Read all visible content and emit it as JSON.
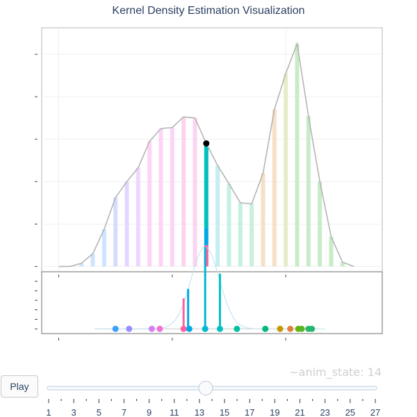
{
  "title": "Kernel Density Estimation Visualization",
  "controls": {
    "play_label": "Play",
    "state_prefix": "~anim_state:",
    "state_value": 14,
    "slider_ticks": [
      "1",
      "3",
      "5",
      "7",
      "9",
      "11",
      "13",
      "15",
      "17",
      "19",
      "21",
      "23",
      "25",
      "27"
    ]
  },
  "colors": {
    "pink": "#ff5fa2",
    "blue": "#00a8e8",
    "teal": "#00c0c0",
    "envelope": "#b4b4b4",
    "gauss": "#bcdff0"
  },
  "chart_data": {
    "type": "bar",
    "x_ticks_main": [
      "1",
      "21"
    ],
    "x_ticks_lower": [
      "1",
      "11",
      "21"
    ],
    "bottom_ticks": [
      "1",
      "11",
      "21"
    ],
    "xlim": [
      -0.5,
      29.5
    ],
    "upper_ylim": [
      -0.5,
      22.5
    ],
    "lower_ylim": [
      -0.5,
      6
    ],
    "envelope": {
      "x": [
        1,
        2,
        3,
        4,
        5,
        6,
        7,
        8,
        9,
        10,
        11,
        12,
        13,
        14,
        15,
        16,
        17,
        18,
        19,
        20,
        21,
        22,
        23,
        24,
        25,
        26,
        27
      ],
      "y": [
        0,
        0,
        0.3,
        1.2,
        3.5,
        6.5,
        8,
        9.3,
        11.8,
        13,
        13.1,
        14.1,
        14,
        11.6,
        9.5,
        7.8,
        6,
        5.9,
        8.8,
        14.8,
        18.2,
        21,
        14.2,
        8,
        2.8,
        0.4,
        0
      ]
    },
    "bars": [
      {
        "x": 3,
        "h": 0.3,
        "color": "#cfe3ff"
      },
      {
        "x": 4,
        "h": 1.2,
        "color": "#cfe3ff"
      },
      {
        "x": 5,
        "h": 3.5,
        "color": "#cfe3ff"
      },
      {
        "x": 6,
        "h": 6.5,
        "color": "#d7dcff"
      },
      {
        "x": 7,
        "h": 8.0,
        "color": "#e3d7ff"
      },
      {
        "x": 8,
        "h": 9.3,
        "color": "#eed7ff"
      },
      {
        "x": 9,
        "h": 11.8,
        "color": "#fbd4f6"
      },
      {
        "x": 10,
        "h": 13.0,
        "color": "#fbd4f6"
      },
      {
        "x": 11,
        "h": 13.1,
        "color": "#fbd4f6"
      },
      {
        "x": 12,
        "h": 14.1,
        "color": "#fbd4f0"
      },
      {
        "x": 13,
        "h": 14.0,
        "color": "#fbd4f0"
      },
      {
        "x": 15,
        "h": 9.5,
        "color": "#c5eef0"
      },
      {
        "x": 16,
        "h": 7.8,
        "color": "#c5f0e6"
      },
      {
        "x": 17,
        "h": 6.0,
        "color": "#c5f0e0"
      },
      {
        "x": 18,
        "h": 5.9,
        "color": "#c8f0dc"
      },
      {
        "x": 19,
        "h": 8.8,
        "color": "#f6e0c8"
      },
      {
        "x": 20,
        "h": 14.8,
        "color": "#f6e0c8"
      },
      {
        "x": 21,
        "h": 18.2,
        "color": "#e6ecc8"
      },
      {
        "x": 22,
        "h": 21.0,
        "color": "#c8ecc8"
      },
      {
        "x": 23,
        "h": 14.2,
        "color": "#c8ecc8"
      },
      {
        "x": 24,
        "h": 8.0,
        "color": "#c8ecc8"
      },
      {
        "x": 25,
        "h": 2.8,
        "color": "#c8ecc8"
      },
      {
        "x": 26,
        "h": 0.4,
        "color": "#c8ecc8"
      }
    ],
    "highlight_bar": {
      "x": 14,
      "segments": [
        {
          "from": 0,
          "to": 2.0,
          "color": "#ff5fa2"
        },
        {
          "from": 2.0,
          "to": 3.6,
          "color": "#00a8e8"
        },
        {
          "from": 3.6,
          "to": 11.6,
          "color": "#00c0c0"
        }
      ],
      "top_marker": 11.6
    },
    "lower_points": [
      {
        "x": 6.0,
        "color": "#3aa0ff"
      },
      {
        "x": 7.2,
        "color": "#9b8cff"
      },
      {
        "x": 9.2,
        "color": "#d580f0"
      },
      {
        "x": 9.9,
        "color": "#f070d8"
      },
      {
        "x": 12.0,
        "color": "#ff5fa2"
      },
      {
        "x": 12.5,
        "color": "#00a8e8"
      },
      {
        "x": 13.9,
        "color": "#00b8d0"
      },
      {
        "x": 15.2,
        "color": "#00c0c0"
      },
      {
        "x": 16.7,
        "color": "#00c0a0"
      },
      {
        "x": 19.2,
        "color": "#00b878"
      },
      {
        "x": 20.5,
        "color": "#c89600"
      },
      {
        "x": 21.4,
        "color": "#e0803a"
      },
      {
        "x": 22.1,
        "color": "#68b400"
      },
      {
        "x": 22.4,
        "color": "#58b428"
      },
      {
        "x": 23.0,
        "color": "#30b860"
      },
      {
        "x": 23.3,
        "color": "#20b870"
      }
    ],
    "lower_stems": [
      {
        "x": 12.0,
        "h": 3.2,
        "color": "#ff5fa2"
      },
      {
        "x": 12.4,
        "h": 4.2,
        "color": "#00a8e8"
      },
      {
        "x": 13.9,
        "h": 8.6,
        "color": "#00b8d0"
      },
      {
        "x": 15.2,
        "h": 5.8,
        "color": "#00c0c0"
      }
    ],
    "gauss": {
      "mu": 13.9,
      "sigma": 1.25,
      "peak": 8.6,
      "from": 4.2,
      "to": 24.5
    }
  }
}
